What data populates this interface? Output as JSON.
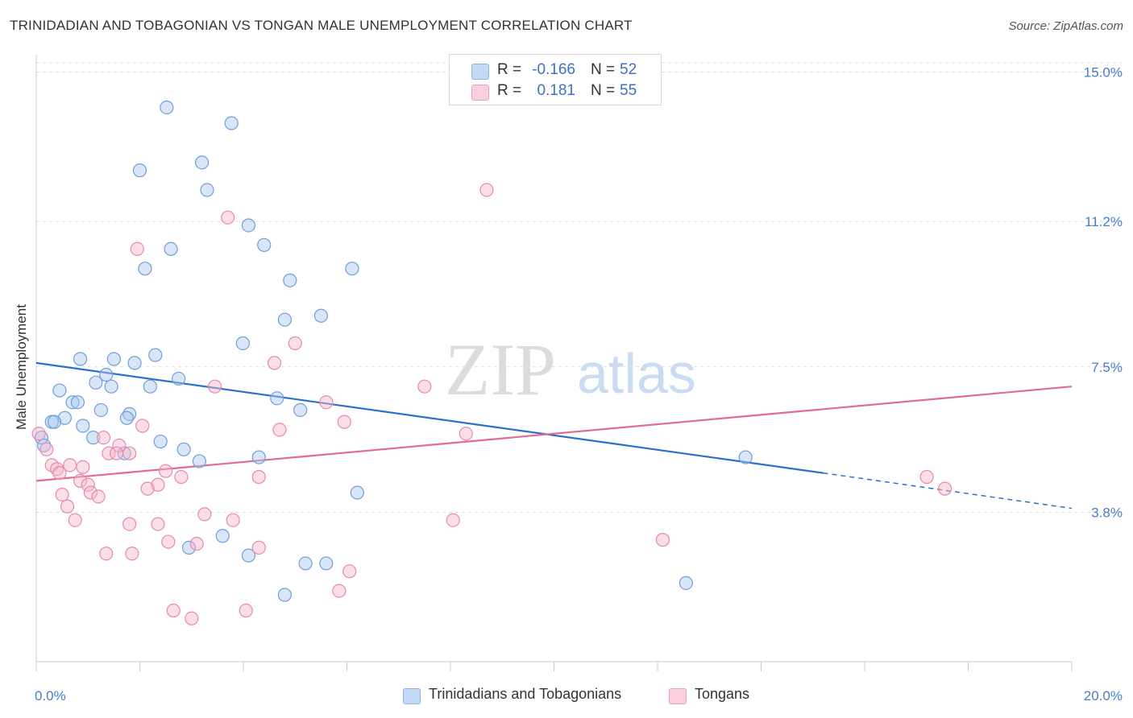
{
  "header": {
    "title": "TRINIDADIAN AND TOBAGONIAN VS TONGAN MALE UNEMPLOYMENT CORRELATION CHART",
    "source": "Source: ZipAtlas.com"
  },
  "watermark": {
    "zip": "ZIP",
    "atlas": "atlas"
  },
  "legend": {
    "rows": [
      {
        "r_label": "R =",
        "r_value": "-0.166",
        "n_label": "N =",
        "n_value": "52",
        "color": "#a8c8f0"
      },
      {
        "r_label": "R =",
        "r_value": "0.181",
        "n_label": "N =",
        "n_value": "55",
        "color": "#f6b8cb"
      }
    ]
  },
  "bottom_legend": {
    "series1": "Trinidadians and Tobagonians",
    "series2": "Tongans"
  },
  "colors": {
    "blue_fill": "#a8c8f0",
    "blue_stroke": "#6f9fd9",
    "blue_line": "#2d6fcc",
    "pink_fill": "#f6b8cb",
    "pink_stroke": "#e88aa8",
    "pink_line": "#e26b96",
    "tick_text": "#4a7cc9",
    "grid": "#dddddd"
  },
  "chart_data": {
    "type": "scatter",
    "title": "TRINIDADIAN AND TOBAGONIAN VS TONGAN MALE UNEMPLOYMENT CORRELATION CHART",
    "xlabel": "",
    "ylabel": "Male Unemployment",
    "xlim": [
      0,
      20
    ],
    "ylim": [
      0,
      15.4
    ],
    "x_tick_labels": [
      "0.0%",
      "20.0%"
    ],
    "y_ticks": [
      3.8,
      7.5,
      11.2,
      15.0
    ],
    "y_tick_labels": [
      "3.8%",
      "7.5%",
      "11.2%",
      "15.0%"
    ],
    "grid": true,
    "legend_position": "top-center",
    "series": [
      {
        "name": "Trinidadians and Tobagonians",
        "color": "#a8c8f0",
        "trend": {
          "x0": 0,
          "y0": 7.6,
          "x1": 15.2,
          "y1": 4.8,
          "dash_to_x": 20,
          "dash_to_y": 3.9
        },
        "points": [
          [
            2.52,
            14.1
          ],
          [
            3.77,
            13.7
          ],
          [
            2.0,
            12.5
          ],
          [
            3.2,
            12.7
          ],
          [
            3.3,
            12.0
          ],
          [
            4.1,
            11.1
          ],
          [
            2.6,
            10.5
          ],
          [
            4.4,
            10.6
          ],
          [
            2.1,
            10.0
          ],
          [
            6.1,
            10.0
          ],
          [
            4.9,
            9.7
          ],
          [
            5.5,
            8.8
          ],
          [
            4.8,
            8.7
          ],
          [
            3.99,
            8.1
          ],
          [
            2.3,
            7.8
          ],
          [
            0.85,
            7.7
          ],
          [
            1.5,
            7.7
          ],
          [
            1.9,
            7.6
          ],
          [
            1.35,
            7.3
          ],
          [
            1.15,
            7.1
          ],
          [
            2.75,
            7.2
          ],
          [
            1.45,
            7.0
          ],
          [
            2.2,
            7.0
          ],
          [
            0.45,
            6.9
          ],
          [
            4.65,
            6.7
          ],
          [
            0.7,
            6.6
          ],
          [
            0.8,
            6.6
          ],
          [
            1.25,
            6.4
          ],
          [
            5.1,
            6.4
          ],
          [
            1.8,
            6.3
          ],
          [
            0.55,
            6.2
          ],
          [
            0.3,
            6.1
          ],
          [
            0.35,
            6.1
          ],
          [
            0.9,
            6.0
          ],
          [
            1.75,
            6.2
          ],
          [
            1.1,
            5.7
          ],
          [
            2.4,
            5.6
          ],
          [
            0.1,
            5.7
          ],
          [
            0.15,
            5.5
          ],
          [
            2.85,
            5.4
          ],
          [
            1.7,
            5.3
          ],
          [
            4.3,
            5.2
          ],
          [
            3.15,
            5.1
          ],
          [
            13.7,
            5.2
          ],
          [
            6.2,
            4.3
          ],
          [
            3.6,
            3.2
          ],
          [
            2.95,
            2.9
          ],
          [
            4.1,
            2.7
          ],
          [
            5.2,
            2.5
          ],
          [
            5.6,
            2.5
          ],
          [
            12.55,
            2.0
          ],
          [
            4.8,
            1.7
          ]
        ]
      },
      {
        "name": "Tongans",
        "color": "#f6b8cb",
        "trend": {
          "x0": 0,
          "y0": 4.6,
          "x1": 20,
          "y1": 7.0
        },
        "points": [
          [
            8.4,
            14.7
          ],
          [
            8.7,
            12.0
          ],
          [
            3.7,
            11.3
          ],
          [
            1.95,
            10.5
          ],
          [
            5.0,
            8.1
          ],
          [
            4.6,
            7.6
          ],
          [
            7.5,
            7.0
          ],
          [
            3.45,
            7.0
          ],
          [
            5.6,
            6.6
          ],
          [
            5.95,
            6.1
          ],
          [
            2.05,
            6.0
          ],
          [
            4.7,
            5.9
          ],
          [
            8.3,
            5.8
          ],
          [
            1.3,
            5.7
          ],
          [
            0.05,
            5.8
          ],
          [
            1.6,
            5.5
          ],
          [
            1.4,
            5.3
          ],
          [
            1.8,
            5.3
          ],
          [
            1.55,
            5.3
          ],
          [
            0.2,
            5.4
          ],
          [
            0.3,
            5.0
          ],
          [
            0.65,
            5.0
          ],
          [
            0.9,
            4.95
          ],
          [
            0.4,
            4.9
          ],
          [
            2.5,
            4.85
          ],
          [
            0.45,
            4.8
          ],
          [
            0.85,
            4.6
          ],
          [
            1.0,
            4.5
          ],
          [
            2.8,
            4.7
          ],
          [
            4.3,
            4.7
          ],
          [
            2.35,
            4.5
          ],
          [
            2.15,
            4.4
          ],
          [
            1.05,
            4.3
          ],
          [
            0.5,
            4.25
          ],
          [
            1.2,
            4.2
          ],
          [
            17.2,
            4.7
          ],
          [
            17.55,
            4.4
          ],
          [
            0.6,
            3.95
          ],
          [
            3.25,
            3.75
          ],
          [
            0.75,
            3.6
          ],
          [
            3.8,
            3.6
          ],
          [
            1.8,
            3.5
          ],
          [
            2.35,
            3.5
          ],
          [
            8.05,
            3.6
          ],
          [
            2.55,
            3.05
          ],
          [
            3.1,
            3.0
          ],
          [
            12.1,
            3.1
          ],
          [
            4.3,
            2.9
          ],
          [
            1.35,
            2.75
          ],
          [
            1.85,
            2.75
          ],
          [
            6.05,
            2.3
          ],
          [
            5.85,
            1.8
          ],
          [
            2.65,
            1.3
          ],
          [
            4.05,
            1.3
          ],
          [
            3.0,
            1.1
          ]
        ]
      }
    ]
  }
}
